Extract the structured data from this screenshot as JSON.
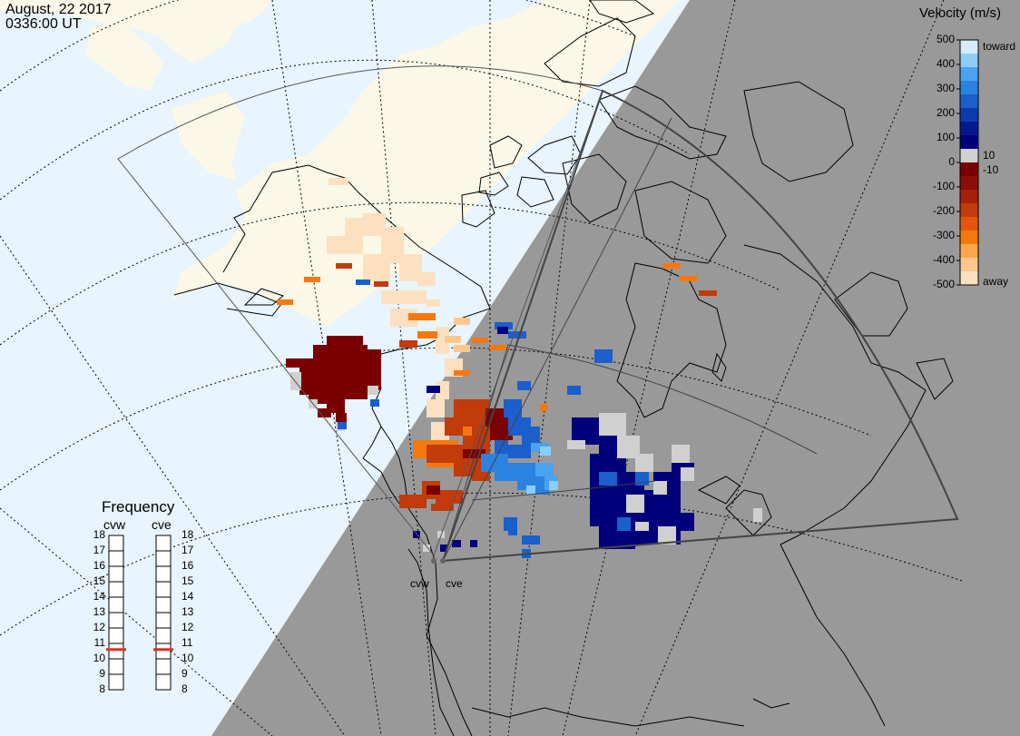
{
  "header": {
    "date": "August, 22 2017",
    "time": "0336:00 UT"
  },
  "colorbar": {
    "title": "Velocity (m/s)",
    "ticks": [
      "500",
      "400",
      "300",
      "200",
      "100",
      "0",
      "-100",
      "-200",
      "-300",
      "-400",
      "-500"
    ],
    "inner_ticks": [
      "10",
      "-10"
    ],
    "toward_label": "toward",
    "away_label": "away",
    "colors": [
      "#fde0c0",
      "#fdc890",
      "#fca64e",
      "#f5780f",
      "#e45610",
      "#c33a0b",
      "#a81e08",
      "#8e0d04",
      "#7a0000",
      "#d0d0d0",
      "#00007a",
      "#001a8e",
      "#0b3bb0",
      "#1a5fcc",
      "#2c82e0",
      "#4aa3f0",
      "#8ccdf9",
      "#d4ecfd"
    ]
  },
  "radars": {
    "west": "cvw",
    "east": "cve"
  },
  "frequency": {
    "title": "Frequency",
    "radars": [
      "cvw",
      "cve"
    ],
    "scale": [
      "18",
      "17",
      "16",
      "15",
      "14",
      "13",
      "12",
      "11",
      "10",
      "9",
      "8"
    ],
    "cvw_mhz": 10.6,
    "cve_mhz": 10.6,
    "marker_color": "#e0321e"
  },
  "map_colors": {
    "ocean": "#e8f4fe",
    "land": "#fbf8e8",
    "night": "#999999",
    "fov": "#444444"
  }
}
